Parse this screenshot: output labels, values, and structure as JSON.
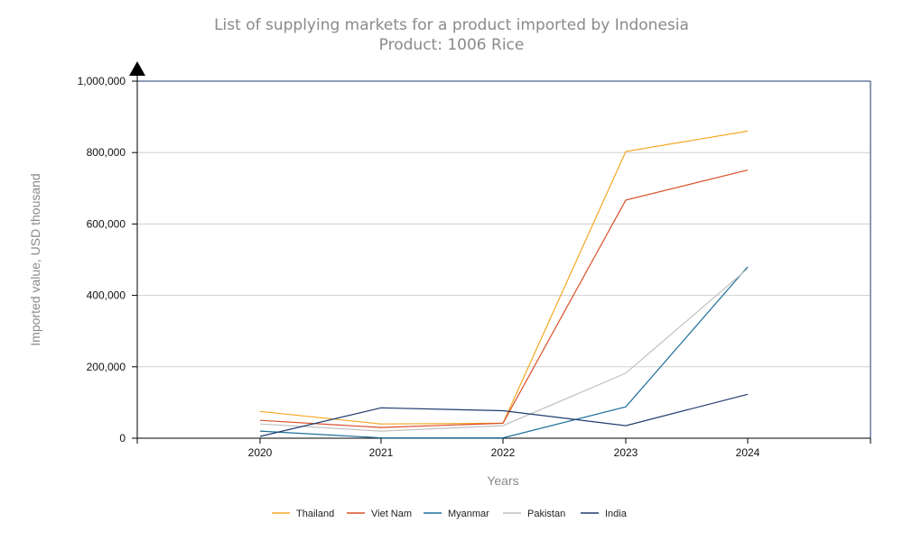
{
  "chart_data": {
    "type": "line",
    "title": "List of supplying markets for a product imported by Indonesia",
    "subtitle": "Product: 1006 Rice",
    "xlabel": "Years",
    "ylabel": "Imported value, USD thousand",
    "x": [
      "2020",
      "2021",
      "2022",
      "2023",
      "2024"
    ],
    "ylim": [
      0,
      1000000
    ],
    "yticks": [
      0,
      200000,
      400000,
      600000,
      800000,
      1000000
    ],
    "ytick_labels": [
      "0",
      "200,000",
      "400,000",
      "600,000",
      "800,000",
      "1,000,000"
    ],
    "grid": true,
    "legend_position": "bottom-center",
    "series": [
      {
        "name": "Thailand",
        "color": "#f5a623",
        "values": [
          75000,
          40000,
          42000,
          803000,
          860000
        ]
      },
      {
        "name": "Viet Nam",
        "color": "#d9502a",
        "values": [
          50000,
          30000,
          42000,
          667000,
          751000
        ]
      },
      {
        "name": "Myanmar",
        "color": "#1f6f9a",
        "values": [
          20000,
          1000,
          1000,
          88000,
          480000
        ]
      },
      {
        "name": "Pakistan",
        "color": "#c0c0c0",
        "values": [
          40000,
          20000,
          35000,
          182000,
          475000
        ]
      },
      {
        "name": "India",
        "color": "#1f3b6e",
        "values": [
          5000,
          85000,
          77000,
          35000,
          123000
        ]
      }
    ]
  }
}
